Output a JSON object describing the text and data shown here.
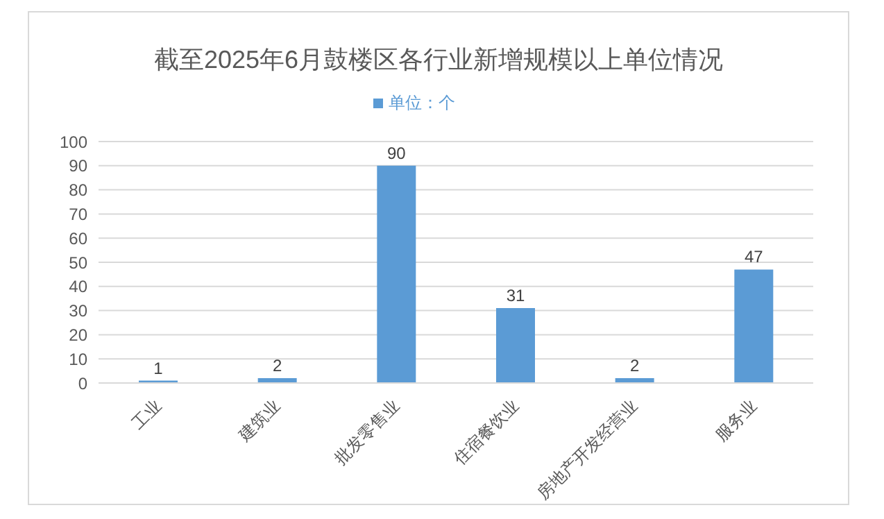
{
  "chart_data": {
    "type": "bar",
    "title": "截至2025年6月鼓楼区各行业新增规模以上单位情况",
    "categories": [
      "工业",
      "建筑业",
      "批发零售业",
      "住宿餐饮业",
      "房地产开发经营业",
      "服务业"
    ],
    "series": [
      {
        "name": "单位：个",
        "color": "#5b9bd5",
        "values": [
          1,
          2,
          90,
          31,
          2,
          47
        ]
      }
    ],
    "ylim": [
      0,
      100
    ],
    "yticks": [
      0,
      10,
      20,
      30,
      40,
      50,
      60,
      70,
      80,
      90,
      100
    ],
    "grid": "y",
    "legend": "top",
    "data_labels": true
  }
}
